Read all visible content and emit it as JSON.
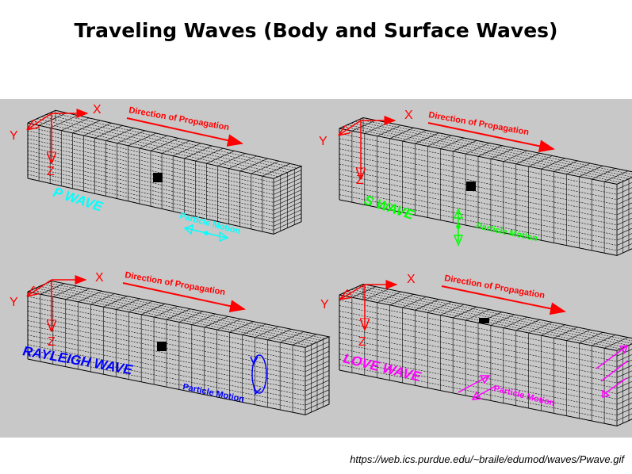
{
  "title": "Traveling Waves (Body and Surface Waves)",
  "source_url": "https://web.ics.purdue.edu/~braile/edumod/waves/Pwave.gif",
  "axes": {
    "x": "X",
    "y": "Y",
    "z": "Z"
  },
  "propagation_label": "Direction of Propagation",
  "particle_motion_label": "Particle Motion",
  "panels": [
    {
      "id": "p-wave",
      "label": "P WAVE",
      "color": "#00ffff"
    },
    {
      "id": "s-wave",
      "label": "S WAVE",
      "color": "#00ff00"
    },
    {
      "id": "rayleigh-wave",
      "label": "RAYLEIGH WAVE",
      "color": "#0000ff"
    },
    {
      "id": "love-wave",
      "label": "LOVE WAVE",
      "color": "#ff00ff"
    }
  ],
  "colors": {
    "axes": "#ff0000",
    "grid": "#000000",
    "panel_background": "#c8c8c8"
  }
}
